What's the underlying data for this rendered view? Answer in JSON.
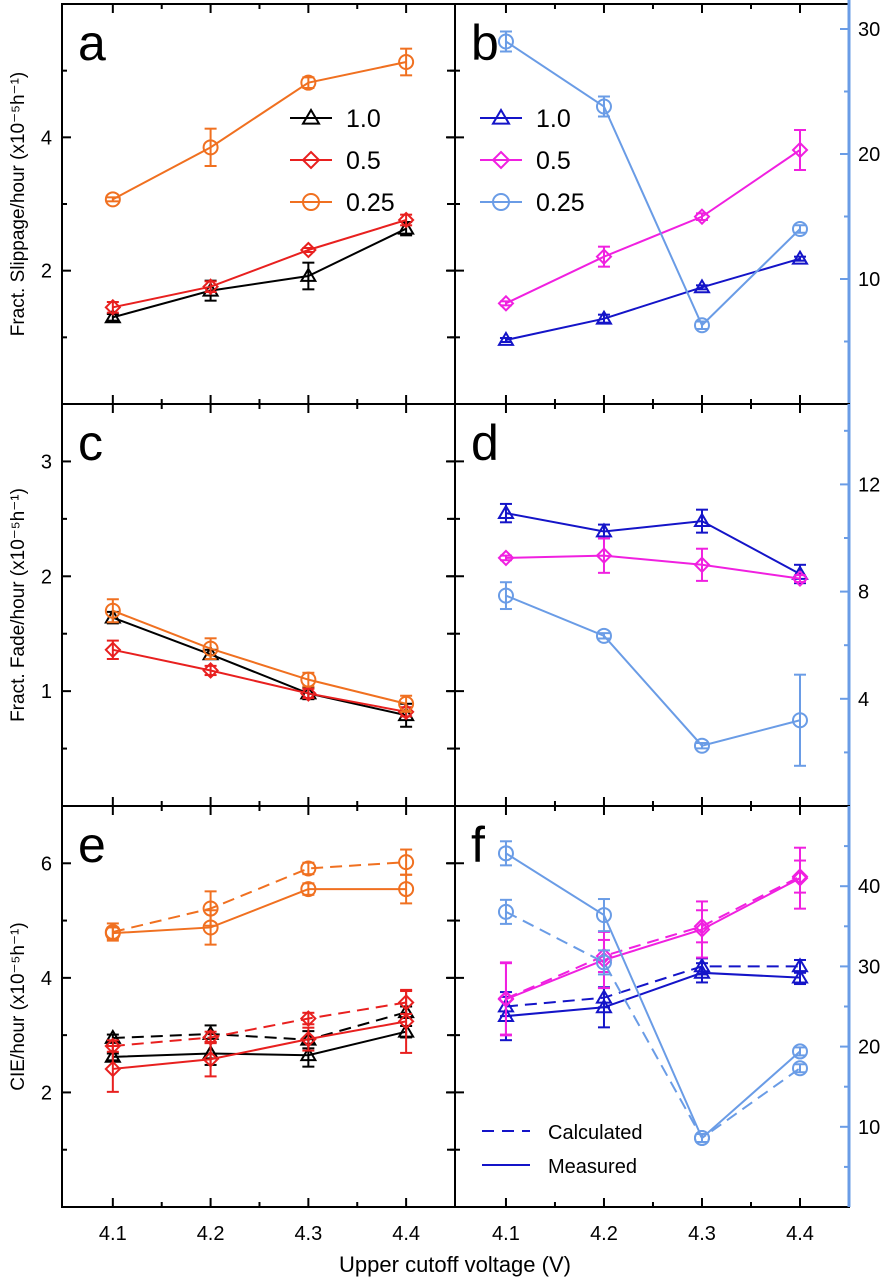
{
  "chart_data": {
    "type": "line",
    "xlabel": "Upper cutoff voltage (V)",
    "x": [
      4.1,
      4.2,
      4.3,
      4.4
    ],
    "xlim": [
      4.048,
      4.45
    ],
    "x_tick_labels": [
      "4.1",
      "4.2",
      "4.3",
      "4.4"
    ],
    "colors": {
      "black": "#000000",
      "red": "#e8201f",
      "orange": "#f07020",
      "blue": "#1414c8",
      "magenta": "#f020e0",
      "lightblue": "#6a9ce6"
    },
    "panels": [
      {
        "letter": "a",
        "ylabel": "Fract. Slippage/hour (x10⁻⁵h⁻¹)",
        "ylim": [
          0,
          6
        ],
        "yticks": [
          2,
          4
        ],
        "yminor": [
          1,
          3,
          5
        ],
        "legend": {
          "position": "upper-middle",
          "entries": [
            "1.0",
            "0.5",
            "0.25"
          ]
        },
        "series": [
          {
            "name": "1.0",
            "color": "#000000",
            "marker": "triangle",
            "axis": "left",
            "style": "solid",
            "y": [
              1.3,
              1.7,
              1.92,
              2.63
            ],
            "err": [
              0.05,
              0.15,
              0.2,
              0.1
            ]
          },
          {
            "name": "0.5",
            "color": "#e8201f",
            "marker": "diamond",
            "axis": "left",
            "style": "solid",
            "y": [
              1.45,
              1.76,
              2.31,
              2.76
            ],
            "err": [
              0.08,
              0.08,
              0.03,
              0.08
            ]
          },
          {
            "name": "0.25",
            "color": "#f07020",
            "marker": "circle",
            "axis": "left",
            "style": "solid",
            "y": [
              3.07,
              3.85,
              4.82,
              5.13
            ],
            "err": [
              0.03,
              0.28,
              0.08,
              0.2
            ]
          }
        ]
      },
      {
        "letter": "b",
        "ylim": [
          0,
          6
        ],
        "yticks": [
          2,
          4
        ],
        "yminor": [
          1,
          3,
          5
        ],
        "y2lim": [
          0,
          32
        ],
        "y2ticks": [
          10,
          20,
          30
        ],
        "y2minor": [
          5,
          15,
          25
        ],
        "legend": {
          "position": "upper-left",
          "entries": [
            "1.0",
            "0.5",
            "0.25"
          ]
        },
        "series": [
          {
            "name": "1.0",
            "color": "#1414c8",
            "marker": "triangle",
            "axis": "left",
            "style": "solid",
            "y": [
              0.96,
              1.28,
              1.75,
              2.18
            ],
            "err": [
              0.03,
              0.06,
              0.03,
              0.03
            ]
          },
          {
            "name": "0.5",
            "color": "#f020e0",
            "marker": "diamond",
            "axis": "left",
            "style": "solid",
            "y": [
              1.51,
              2.21,
              2.81,
              3.81
            ],
            "err": [
              0.03,
              0.15,
              0.05,
              0.3
            ]
          },
          {
            "name": "0.25",
            "color": "#6a9ce6",
            "marker": "circle",
            "axis": "right",
            "style": "solid",
            "y": [
              29.0,
              23.8,
              6.3,
              14.0
            ],
            "err": [
              0.8,
              0.8,
              0.3,
              0.3
            ]
          }
        ]
      },
      {
        "letter": "c",
        "ylabel": "Fract. Fade/hour (x10⁻⁵h⁻¹)",
        "ylim": [
          0,
          3.5
        ],
        "yticks": [
          1,
          2,
          3
        ],
        "yminor": [
          0.5,
          1.5,
          2.5
        ],
        "series": [
          {
            "name": "1.0",
            "color": "#000000",
            "marker": "triangle",
            "axis": "left",
            "style": "solid",
            "y": [
              1.64,
              1.32,
              0.98,
              0.79
            ],
            "err": [
              0.05,
              0.04,
              0.05,
              0.1
            ]
          },
          {
            "name": "0.5",
            "color": "#e8201f",
            "marker": "diamond",
            "axis": "left",
            "style": "solid",
            "y": [
              1.36,
              1.18,
              0.98,
              0.82
            ],
            "err": [
              0.08,
              0.04,
              0.04,
              0.04
            ]
          },
          {
            "name": "0.25",
            "color": "#f07020",
            "marker": "circle",
            "axis": "left",
            "style": "solid",
            "y": [
              1.7,
              1.37,
              1.1,
              0.89
            ],
            "err": [
              0.1,
              0.09,
              0.06,
              0.07
            ]
          }
        ]
      },
      {
        "letter": "d",
        "ylim": [
          0,
          3.5
        ],
        "yticks": [
          1,
          2,
          3
        ],
        "yminor": [
          0.5,
          1.5,
          2.5
        ],
        "y2lim": [
          0,
          15
        ],
        "y2ticks": [
          4,
          8,
          12
        ],
        "y2minor": [
          2,
          6,
          10,
          14
        ],
        "series": [
          {
            "name": "1.0",
            "color": "#1414c8",
            "marker": "triangle",
            "axis": "left",
            "style": "solid",
            "y": [
              2.55,
              2.39,
              2.48,
              2.02
            ],
            "err": [
              0.08,
              0.06,
              0.1,
              0.08
            ]
          },
          {
            "name": "0.5",
            "color": "#f020e0",
            "marker": "diamond",
            "axis": "left",
            "style": "solid",
            "y": [
              2.16,
              2.18,
              2.1,
              1.98
            ],
            "err": [
              0.02,
              0.15,
              0.14,
              0.03
            ]
          },
          {
            "name": "0.25",
            "color": "#6a9ce6",
            "marker": "circle",
            "axis": "right",
            "style": "solid",
            "y": [
              7.85,
              6.35,
              2.25,
              3.2
            ],
            "err": [
              0.5,
              0.1,
              0.1,
              1.7
            ]
          }
        ]
      },
      {
        "letter": "e",
        "ylabel": "CIE/hour (x10⁻⁵h⁻¹)",
        "ylim": [
          0,
          7
        ],
        "yticks": [
          2,
          4,
          6
        ],
        "yminor": [
          1,
          3,
          5
        ],
        "series": [
          {
            "name": "1.0 calculated",
            "color": "#000000",
            "marker": "triangle",
            "axis": "left",
            "style": "dashed",
            "y": [
              2.95,
              3.02,
              2.92,
              3.4
            ],
            "err": [
              0.06,
              0.15,
              0.15,
              0.1
            ]
          },
          {
            "name": "1.0 measured",
            "color": "#000000",
            "marker": "triangle",
            "axis": "left",
            "style": "solid",
            "y": [
              2.62,
              2.68,
              2.65,
              3.06
            ],
            "err": [
              0.06,
              0.2,
              0.2,
              0.1
            ]
          },
          {
            "name": "0.5 calculated",
            "color": "#e8201f",
            "marker": "diamond",
            "axis": "left",
            "style": "dashed",
            "y": [
              2.81,
              2.96,
              3.29,
              3.57
            ],
            "err": [
              0.1,
              0.1,
              0.1,
              0.2
            ]
          },
          {
            "name": "0.5 measured",
            "color": "#e8201f",
            "marker": "diamond",
            "axis": "left",
            "style": "solid",
            "y": [
              2.41,
              2.58,
              2.93,
              3.24
            ],
            "err": [
              0.4,
              0.3,
              0.2,
              0.55
            ]
          },
          {
            "name": "0.25 calculated",
            "color": "#f07020",
            "marker": "circle",
            "axis": "left",
            "style": "dashed",
            "y": [
              4.8,
              5.21,
              5.91,
              6.02
            ],
            "err": [
              0.15,
              0.3,
              0.1,
              0.22
            ]
          },
          {
            "name": "0.25 measured",
            "color": "#f07020",
            "marker": "circle",
            "axis": "left",
            "style": "solid",
            "y": [
              4.78,
              4.88,
              5.55,
              5.55
            ],
            "err": [
              0.1,
              0.3,
              0.1,
              0.25
            ]
          }
        ]
      },
      {
        "letter": "f",
        "ylim": [
          0,
          7
        ],
        "yticks": [
          2,
          4,
          6
        ],
        "yminor": [
          1,
          3,
          5
        ],
        "y2lim": [
          0,
          50
        ],
        "y2ticks": [
          10,
          20,
          30,
          40
        ],
        "y2minor": [
          5,
          15,
          25,
          35,
          45
        ],
        "legend": {
          "position": "lower-left",
          "entries": [
            "Calculated",
            "Measured"
          ]
        },
        "series": [
          {
            "name": "1.0 calculated",
            "color": "#1414c8",
            "marker": "triangle",
            "axis": "right",
            "style": "dashed",
            "y": [
              25.0,
              26.1,
              30.0,
              30.0
            ],
            "err": [
              1.2,
              1.2,
              1.0,
              0.8
            ]
          },
          {
            "name": "1.0 measured",
            "color": "#1414c8",
            "marker": "triangle",
            "axis": "right",
            "style": "solid",
            "y": [
              23.8,
              24.9,
              29.2,
              28.6
            ],
            "err": [
              3.0,
              2.5,
              1.2,
              0.8
            ]
          },
          {
            "name": "0.5 calculated",
            "color": "#f020e0",
            "marker": "diamond",
            "axis": "right",
            "style": "dashed",
            "y": [
              26.0,
              31.3,
              35.0,
              41.2
            ],
            "err": [
              4.5,
              2.0,
              2.0,
              2.0
            ]
          },
          {
            "name": "0.5 measured",
            "color": "#f020e0",
            "marker": "diamond",
            "axis": "right",
            "style": "solid",
            "y": [
              25.9,
              30.8,
              34.6,
              41.0
            ],
            "err": [
              4.5,
              3.5,
              3.5,
              3.8
            ]
          },
          {
            "name": "0.25 calculated",
            "color": "#6a9ce6",
            "marker": "circle",
            "axis": "right",
            "style": "dashed",
            "y": [
              36.8,
              30.5,
              8.6,
              17.3
            ],
            "err": [
              1.5,
              1.5,
              0.5,
              0.5
            ]
          },
          {
            "name": "0.25 measured",
            "color": "#6a9ce6",
            "marker": "circle",
            "axis": "right",
            "style": "solid",
            "y": [
              44.1,
              36.4,
              8.6,
              19.4
            ],
            "err": [
              1.5,
              2.0,
              0.5,
              0.5
            ]
          }
        ]
      }
    ]
  }
}
